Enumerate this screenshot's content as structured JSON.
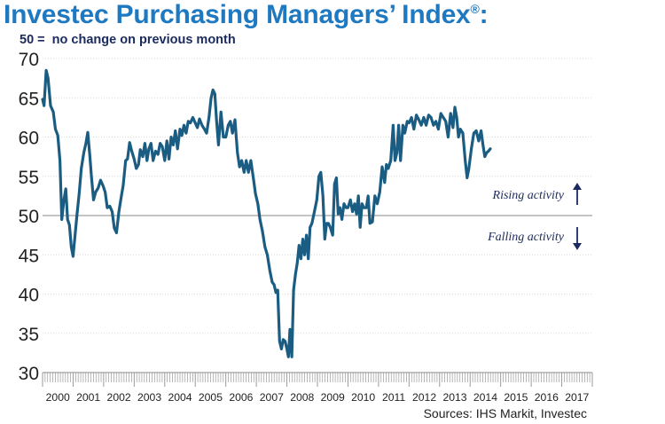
{
  "title": "Investec Purchasing Managers’ Index",
  "title_mark": "®",
  "title_suffix": ":",
  "subtitle": "50 =  no change on previous month",
  "source": "Sources: IHS Markit, Investec",
  "colors": {
    "line": "#1b5d82",
    "title": "#1f79c1",
    "arrow": "#1a2a5e",
    "grid": "#d9d9d9"
  },
  "chart_data": {
    "type": "line",
    "ylim": [
      30,
      70
    ],
    "yticks": [
      30,
      35,
      40,
      45,
      50,
      55,
      60,
      65,
      70
    ],
    "xlim": [
      2000,
      2018
    ],
    "xticks": [
      "2000",
      "2001",
      "2002",
      "2003",
      "2004",
      "2005",
      "2006",
      "2007",
      "2008",
      "2009",
      "2010",
      "2011",
      "2012",
      "2013",
      "2014",
      "2015",
      "2016",
      "2017"
    ],
    "reference_line": 50,
    "grid": "horizontal, dotted",
    "annotations": [
      {
        "text": "Rising activity",
        "arrow": "up"
      },
      {
        "text": "Falling activity",
        "arrow": "down"
      }
    ],
    "series": [
      {
        "values": [
          [
            2000.0,
            64.8
          ],
          [
            2000.05,
            64.0
          ],
          [
            2000.12,
            68.5
          ],
          [
            2000.18,
            67.5
          ],
          [
            2000.26,
            64.0
          ],
          [
            2000.35,
            63.2
          ],
          [
            2000.42,
            61.0
          ],
          [
            2000.5,
            60.2
          ],
          [
            2000.57,
            57.0
          ],
          [
            2000.63,
            49.5
          ],
          [
            2000.7,
            52.0
          ],
          [
            2000.76,
            53.4
          ],
          [
            2000.82,
            49.5
          ],
          [
            2000.88,
            48.8
          ],
          [
            2000.94,
            46.0
          ],
          [
            2001.0,
            44.8
          ],
          [
            2001.07,
            47.8
          ],
          [
            2001.13,
            50.2
          ],
          [
            2001.2,
            52.8
          ],
          [
            2001.27,
            56.0
          ],
          [
            2001.35,
            58.0
          ],
          [
            2001.42,
            59.2
          ],
          [
            2001.48,
            60.6
          ],
          [
            2001.55,
            57.5
          ],
          [
            2001.6,
            55.0
          ],
          [
            2001.67,
            52.0
          ],
          [
            2001.74,
            53.0
          ],
          [
            2001.82,
            53.5
          ],
          [
            2001.9,
            54.5
          ],
          [
            2001.98,
            53.8
          ],
          [
            2002.05,
            53.0
          ],
          [
            2002.12,
            51.0
          ],
          [
            2002.2,
            51.2
          ],
          [
            2002.28,
            50.5
          ],
          [
            2002.35,
            48.4
          ],
          [
            2002.42,
            47.8
          ],
          [
            2002.5,
            50.5
          ],
          [
            2002.58,
            52.5
          ],
          [
            2002.64,
            53.8
          ],
          [
            2002.72,
            57.0
          ],
          [
            2002.78,
            57.2
          ],
          [
            2002.85,
            59.3
          ],
          [
            2002.92,
            58.2
          ],
          [
            2003.0,
            57.2
          ],
          [
            2003.07,
            56.0
          ],
          [
            2003.14,
            56.5
          ],
          [
            2003.2,
            58.4
          ],
          [
            2003.28,
            57.5
          ],
          [
            2003.35,
            59.2
          ],
          [
            2003.42,
            57.0
          ],
          [
            2003.48,
            58.5
          ],
          [
            2003.55,
            59.2
          ],
          [
            2003.62,
            57.0
          ],
          [
            2003.7,
            58.2
          ],
          [
            2003.78,
            57.8
          ],
          [
            2003.85,
            59.2
          ],
          [
            2003.92,
            58.8
          ],
          [
            2004.0,
            57.0
          ],
          [
            2004.07,
            59.5
          ],
          [
            2004.14,
            57.2
          ],
          [
            2004.21,
            60.0
          ],
          [
            2004.28,
            59.0
          ],
          [
            2004.35,
            60.8
          ],
          [
            2004.42,
            58.5
          ],
          [
            2004.5,
            61.0
          ],
          [
            2004.56,
            60.2
          ],
          [
            2004.63,
            61.5
          ],
          [
            2004.7,
            60.5
          ],
          [
            2004.77,
            62.0
          ],
          [
            2004.84,
            61.8
          ],
          [
            2004.92,
            62.5
          ],
          [
            2005.0,
            61.8
          ],
          [
            2005.07,
            61.2
          ],
          [
            2005.14,
            62.3
          ],
          [
            2005.22,
            61.5
          ],
          [
            2005.3,
            61.0
          ],
          [
            2005.37,
            60.5
          ],
          [
            2005.45,
            62.5
          ],
          [
            2005.52,
            65.0
          ],
          [
            2005.58,
            66.0
          ],
          [
            2005.64,
            65.5
          ],
          [
            2005.7,
            62.0
          ],
          [
            2005.76,
            59.0
          ],
          [
            2005.84,
            63.2
          ],
          [
            2005.92,
            60.0
          ],
          [
            2006.0,
            60.0
          ],
          [
            2006.08,
            61.5
          ],
          [
            2006.15,
            62.0
          ],
          [
            2006.22,
            60.5
          ],
          [
            2006.3,
            62.2
          ],
          [
            2006.38,
            58.0
          ],
          [
            2006.45,
            56.2
          ],
          [
            2006.52,
            57.0
          ],
          [
            2006.6,
            55.5
          ],
          [
            2006.67,
            57.0
          ],
          [
            2006.74,
            55.5
          ],
          [
            2006.82,
            57.0
          ],
          [
            2006.9,
            54.8
          ],
          [
            2006.97,
            52.8
          ],
          [
            2007.05,
            51.5
          ],
          [
            2007.12,
            49.5
          ],
          [
            2007.2,
            48.0
          ],
          [
            2007.28,
            46.0
          ],
          [
            2007.36,
            45.0
          ],
          [
            2007.44,
            43.0
          ],
          [
            2007.52,
            41.5
          ],
          [
            2007.58,
            41.2
          ],
          [
            2007.64,
            40.2
          ],
          [
            2007.7,
            40.5
          ],
          [
            2007.76,
            34.0
          ],
          [
            2007.82,
            33.0
          ],
          [
            2007.88,
            34.2
          ],
          [
            2007.94,
            34.0
          ],
          [
            2008.0,
            33.0
          ],
          [
            2008.05,
            32.0
          ],
          [
            2008.1,
            35.5
          ],
          [
            2008.16,
            32.0
          ],
          [
            2008.22,
            40.5
          ],
          [
            2008.28,
            42.5
          ],
          [
            2008.34,
            44.0
          ],
          [
            2008.4,
            46.2
          ],
          [
            2008.46,
            44.5
          ],
          [
            2008.52,
            47.0
          ],
          [
            2008.58,
            45.0
          ],
          [
            2008.64,
            47.5
          ],
          [
            2008.7,
            44.5
          ],
          [
            2008.76,
            48.5
          ],
          [
            2008.82,
            49.0
          ],
          [
            2008.9,
            50.5
          ],
          [
            2008.98,
            52.0
          ],
          [
            2009.05,
            55.0
          ],
          [
            2009.11,
            55.5
          ],
          [
            2009.18,
            52.5
          ],
          [
            2009.24,
            47.0
          ],
          [
            2009.3,
            49.0
          ],
          [
            2009.36,
            49.0
          ],
          [
            2009.42,
            48.5
          ],
          [
            2009.5,
            47.5
          ],
          [
            2009.56,
            54.0
          ],
          [
            2009.62,
            54.8
          ],
          [
            2009.68,
            50.2
          ],
          [
            2009.74,
            51.0
          ],
          [
            2009.8,
            49.5
          ],
          [
            2009.87,
            51.5
          ],
          [
            2009.94,
            51.0
          ],
          [
            2010.0,
            51.0
          ],
          [
            2010.08,
            52.0
          ],
          [
            2010.15,
            50.5
          ],
          [
            2010.22,
            51.5
          ],
          [
            2010.28,
            50.2
          ],
          [
            2010.34,
            52.5
          ],
          [
            2010.4,
            48.5
          ],
          [
            2010.46,
            51.5
          ],
          [
            2010.52,
            51.0
          ],
          [
            2010.6,
            51.0
          ],
          [
            2010.66,
            52.5
          ],
          [
            2010.72,
            49.0
          ],
          [
            2010.8,
            49.2
          ],
          [
            2010.88,
            52.5
          ],
          [
            2010.96,
            51.5
          ],
          [
            2011.04,
            53.0
          ],
          [
            2011.12,
            56.2
          ],
          [
            2011.2,
            54.2
          ],
          [
            2011.26,
            56.5
          ],
          [
            2011.32,
            56.0
          ],
          [
            2011.4,
            57.0
          ],
          [
            2011.48,
            61.5
          ],
          [
            2011.54,
            57.0
          ],
          [
            2011.6,
            58.0
          ],
          [
            2011.66,
            61.5
          ],
          [
            2011.72,
            57.0
          ],
          [
            2011.8,
            61.5
          ],
          [
            2011.86,
            60.5
          ],
          [
            2011.94,
            62.0
          ],
          [
            2012.0,
            61.8
          ],
          [
            2012.08,
            62.5
          ],
          [
            2012.16,
            61.0
          ],
          [
            2012.24,
            62.8
          ],
          [
            2012.32,
            62.2
          ],
          [
            2012.4,
            61.5
          ],
          [
            2012.48,
            62.5
          ],
          [
            2012.56,
            61.5
          ],
          [
            2012.64,
            62.8
          ],
          [
            2012.72,
            62.5
          ],
          [
            2012.8,
            61.5
          ],
          [
            2012.88,
            62.0
          ],
          [
            2012.96,
            61.0
          ],
          [
            2013.04,
            63.0
          ],
          [
            2013.12,
            62.5
          ],
          [
            2013.2,
            62.0
          ],
          [
            2013.28,
            60.0
          ],
          [
            2013.36,
            63.0
          ],
          [
            2013.44,
            61.2
          ],
          [
            2013.5,
            63.8
          ],
          [
            2013.56,
            62.5
          ],
          [
            2013.62,
            60.0
          ],
          [
            2013.68,
            61.0
          ],
          [
            2013.76,
            60.5
          ],
          [
            2013.84,
            57.0
          ],
          [
            2013.9,
            54.8
          ],
          [
            2013.96,
            56.0
          ],
          [
            2014.04,
            58.5
          ],
          [
            2014.12,
            60.5
          ],
          [
            2014.2,
            60.8
          ],
          [
            2014.28,
            59.5
          ],
          [
            2014.36,
            60.8
          ],
          [
            2014.42,
            59.0
          ],
          [
            2014.48,
            57.5
          ],
          [
            2014.54,
            58.0
          ],
          [
            2014.6,
            58.2
          ],
          [
            2014.66,
            58.5
          ]
        ]
      }
    ]
  }
}
